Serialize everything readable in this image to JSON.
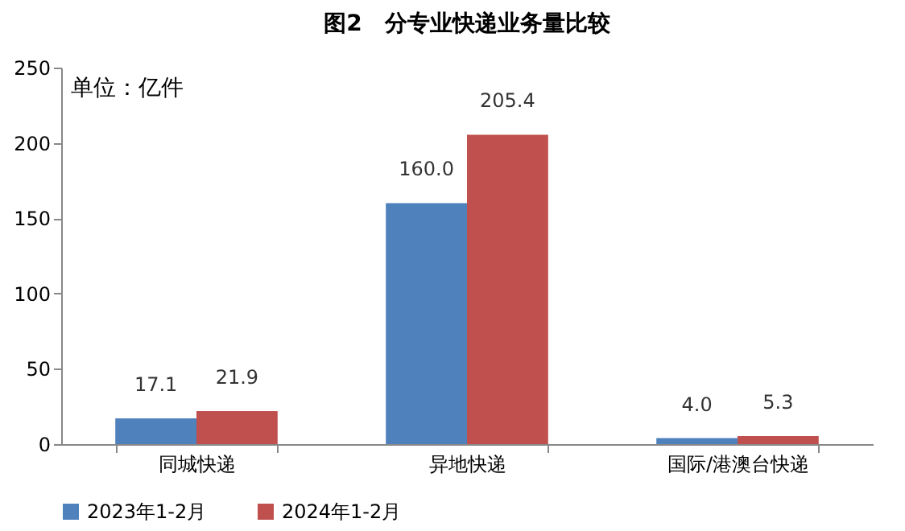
{
  "chart_data": {
    "type": "bar",
    "title": "图2　分专业快递业务量比较",
    "annotations": [
      "单位：亿件"
    ],
    "categories": [
      "同城快递",
      "异地快递",
      "国际/港澳台快递"
    ],
    "series": [
      {
        "name": "2023年1-2月",
        "color": "#4f81bd",
        "values": [
          17.1,
          160,
          4
        ],
        "value_labels": [
          "17.1",
          "160.0",
          "4.0"
        ]
      },
      {
        "name": "2024年1-2月",
        "color": "#c0504d",
        "values": [
          21.9,
          205.4,
          5.3
        ],
        "value_labels": [
          "21.9",
          "205.4",
          "5.3"
        ]
      }
    ],
    "ylim": [
      0,
      250
    ],
    "yticks": [
      0,
      50,
      100,
      150,
      200,
      250
    ],
    "grid": false,
    "legend": "bottom"
  }
}
